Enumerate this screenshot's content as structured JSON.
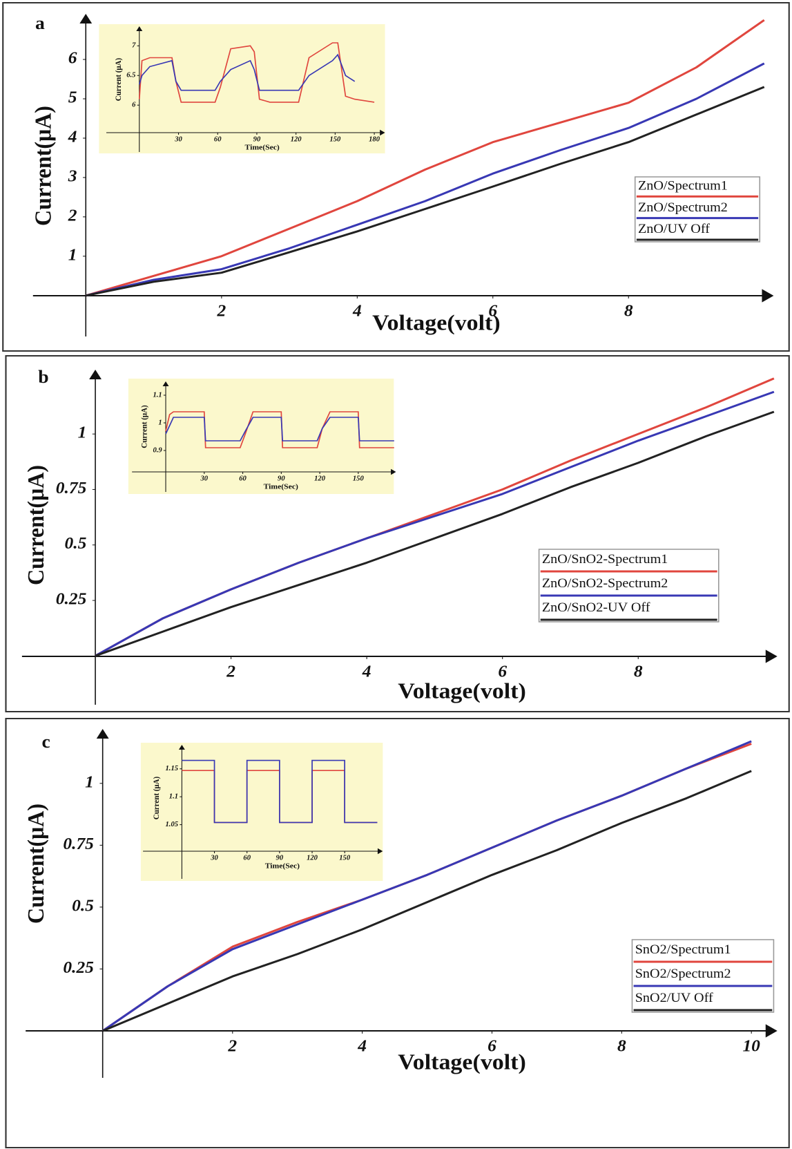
{
  "chart_data": [
    {
      "type": "line",
      "label": "a",
      "xlabel": "Voltage(volt)",
      "ylabel": "Current(μA)",
      "xlim": [
        -0.78,
        10.14
      ],
      "ylim": [
        -1.04,
        7.16
      ],
      "xticks": [
        2,
        4,
        6,
        8
      ],
      "yticks": [
        1,
        2,
        3,
        4,
        5,
        6
      ],
      "x": [
        0,
        1,
        2,
        3,
        4,
        5,
        6,
        7,
        8,
        9,
        10
      ],
      "series": [
        {
          "name": "ZnO/Spectrum1",
          "color": "#e0463e",
          "values": [
            0,
            0.5,
            1.0,
            1.7,
            2.4,
            3.2,
            3.9,
            4.4,
            4.9,
            5.8,
            7.0
          ]
        },
        {
          "name": "ZnO/Spectrum2",
          "color": "#3838b4",
          "values": [
            0,
            0.4,
            0.67,
            1.2,
            1.8,
            2.4,
            3.1,
            3.7,
            4.26,
            5.0,
            5.9
          ]
        },
        {
          "name": "ZnO/UV Off",
          "color": "#222222",
          "values": [
            0,
            0.35,
            0.58,
            1.1,
            1.63,
            2.2,
            2.77,
            3.35,
            3.9,
            4.6,
            5.3
          ]
        }
      ],
      "inset": {
        "xlabel": "Time(Sec)",
        "ylabel": "Current (μA)",
        "xlim": [
          -25.3,
          188.2
        ],
        "ylim": [
          5.21,
          7.33
        ],
        "xticks": [
          30,
          60,
          90,
          120,
          150,
          180
        ],
        "yticks": [
          6,
          6.5,
          7
        ],
        "x": [
          0,
          2,
          8,
          25,
          28,
          32,
          45,
          58,
          62,
          70,
          85,
          88,
          92,
          100,
          118,
          122,
          130,
          148,
          152,
          158,
          165,
          180
        ],
        "series": [
          {
            "color": "#e0463e",
            "values": [
              6.1,
              6.75,
              6.8,
              6.8,
              6.4,
              6.05,
              6.05,
              6.05,
              6.3,
              6.95,
              7.0,
              6.9,
              6.1,
              6.05,
              6.05,
              6.05,
              6.8,
              7.05,
              7.05,
              6.15,
              6.1,
              6.05
            ]
          },
          {
            "color": "#3838b4",
            "values": [
              6.35,
              6.5,
              6.65,
              6.75,
              6.4,
              6.25,
              6.25,
              6.25,
              6.4,
              6.6,
              6.75,
              6.6,
              6.25,
              6.25,
              6.25,
              6.25,
              6.5,
              6.75,
              6.85,
              6.5,
              6.4,
              null
            ]
          }
        ]
      }
    },
    {
      "type": "line",
      "label": "b",
      "xlabel": "Voltage(volt)",
      "ylabel": "Current(μA)",
      "xlim": [
        -1.08,
        10.05
      ],
      "ylim": [
        -0.22,
        1.29
      ],
      "xticks": [
        2,
        4,
        6,
        8
      ],
      "yticks": [
        0.25,
        0.5,
        0.75,
        1
      ],
      "x": [
        0,
        1,
        2,
        3,
        4,
        5,
        6,
        7,
        8,
        9,
        10
      ],
      "series": [
        {
          "name": "ZnO/SnO2-Spectrum1",
          "color": "#e0463e",
          "values": [
            0,
            0.17,
            0.3,
            0.42,
            0.53,
            0.64,
            0.75,
            0.88,
            1.0,
            1.12,
            1.25
          ]
        },
        {
          "name": "ZnO/SnO2-Spectrum2",
          "color": "#3838b4",
          "values": [
            0,
            0.17,
            0.3,
            0.42,
            0.53,
            0.63,
            0.73,
            0.85,
            0.97,
            1.08,
            1.19
          ]
        },
        {
          "name": "ZnO/SnO2-UV Off",
          "color": "#222222",
          "values": [
            0,
            0.11,
            0.22,
            0.32,
            0.42,
            0.53,
            0.64,
            0.76,
            0.87,
            0.99,
            1.1
          ]
        }
      ],
      "inset": {
        "xlabel": "Time(Sec)",
        "ylabel": "Current (μA)",
        "xlim": [
          -26.3,
          179.4
        ],
        "ylim": [
          0.75,
          1.15
        ],
        "xticks": [
          30,
          60,
          90,
          120,
          150
        ],
        "yticks": [
          0.9,
          1,
          1.1
        ],
        "x": [
          0,
          3,
          6,
          30,
          31,
          58,
          62,
          68,
          90,
          91,
          118,
          122,
          128,
          150,
          151,
          178
        ],
        "series": [
          {
            "color": "#e0463e",
            "values": [
              0.97,
              1.03,
              1.04,
              1.04,
              0.91,
              0.91,
              0.96,
              1.04,
              1.04,
              0.91,
              0.91,
              0.98,
              1.04,
              1.04,
              0.91,
              0.91
            ]
          },
          {
            "color": "#3838b4",
            "values": [
              0.96,
              0.99,
              1.02,
              1.02,
              0.935,
              0.935,
              0.97,
              1.02,
              1.02,
              0.935,
              0.935,
              0.98,
              1.02,
              1.02,
              0.935,
              0.935
            ]
          }
        ]
      }
    },
    {
      "type": "line",
      "label": "c",
      "xlabel": "Voltage(volt)",
      "ylabel": "Current(μA)",
      "xlim": [
        -1.19,
        10.4
      ],
      "ylim": [
        -0.19,
        1.22
      ],
      "xticks": [
        2,
        4,
        6,
        8,
        10
      ],
      "yticks": [
        0.25,
        0.5,
        0.75,
        1
      ],
      "x": [
        0,
        1,
        2,
        3,
        4,
        5,
        6,
        7,
        8,
        9,
        10
      ],
      "series": [
        {
          "name": "SnO2/Spectrum1",
          "color": "#e0463e",
          "values": [
            0,
            0.18,
            0.34,
            0.44,
            0.53,
            0.63,
            0.74,
            0.85,
            0.95,
            1.06,
            1.16
          ]
        },
        {
          "name": "SnO2/Spectrum2",
          "color": "#3838b4",
          "values": [
            0,
            0.18,
            0.33,
            0.43,
            0.53,
            0.63,
            0.74,
            0.85,
            0.95,
            1.06,
            1.17
          ]
        },
        {
          "name": "SnO2/UV Off",
          "color": "#222222",
          "values": [
            0,
            0.11,
            0.22,
            0.31,
            0.41,
            0.52,
            0.63,
            0.73,
            0.84,
            0.94,
            1.05
          ]
        }
      ],
      "inset": {
        "xlabel": "Time(Sec)",
        "ylabel": "Current (μA)",
        "xlim": [
          -35.8,
          185.1
        ],
        "ylim": [
          0.953,
          1.193
        ],
        "xticks": [
          30,
          60,
          90,
          120,
          150
        ],
        "yticks": [
          1.05,
          1.1,
          1.15
        ],
        "x": [
          0,
          30,
          30,
          60,
          60,
          90,
          90,
          120,
          120,
          150,
          150,
          180
        ],
        "series": [
          {
            "color": "#e0463e",
            "values": [
              1.147,
              1.147,
              1.054,
              1.054,
              1.147,
              1.147,
              1.054,
              1.054,
              1.147,
              1.147,
              1.054,
              1.054
            ]
          },
          {
            "color": "#3838b4",
            "values": [
              1.165,
              1.165,
              1.054,
              1.054,
              1.165,
              1.165,
              1.054,
              1.054,
              1.165,
              1.165,
              1.054,
              1.054
            ]
          }
        ]
      }
    }
  ]
}
